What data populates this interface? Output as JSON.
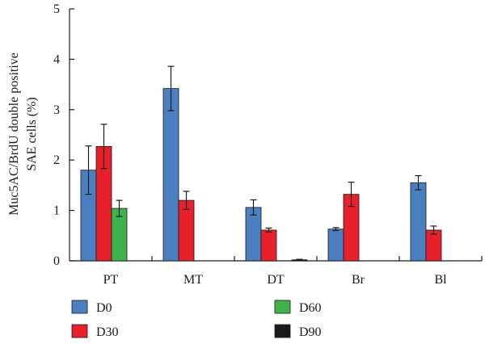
{
  "chart_data": {
    "type": "bar",
    "title": "",
    "xlabel": "",
    "ylabel_lines": [
      "Muc5AC/BrdU double positive",
      "SAE cells (%)"
    ],
    "ylim": [
      0,
      5
    ],
    "yticks": [
      0,
      1,
      2,
      3,
      4,
      5
    ],
    "categories": [
      "PT",
      "MT",
      "DT",
      "Br",
      "Bl"
    ],
    "grid": false,
    "legend_position": "bottom",
    "series": [
      {
        "name": "D0",
        "color": "#4a7fc1",
        "values": [
          1.8,
          3.42,
          1.06,
          0.63,
          1.55
        ],
        "errors": [
          0.48,
          0.44,
          0.15,
          0.03,
          0.14
        ]
      },
      {
        "name": "D30",
        "color": "#e8202a",
        "values": [
          2.27,
          1.2,
          0.61,
          1.32,
          0.61
        ],
        "errors": [
          0.44,
          0.18,
          0.04,
          0.24,
          0.08
        ]
      },
      {
        "name": "D60",
        "color": "#3cb44b",
        "values": [
          1.04,
          null,
          null,
          null,
          null
        ],
        "errors": [
          0.16,
          null,
          null,
          null,
          null
        ]
      },
      {
        "name": "D90",
        "color": "#1a1a1a",
        "values": [
          null,
          null,
          0.02,
          null,
          null
        ],
        "errors": [
          null,
          null,
          0.01,
          null,
          null
        ]
      }
    ]
  }
}
